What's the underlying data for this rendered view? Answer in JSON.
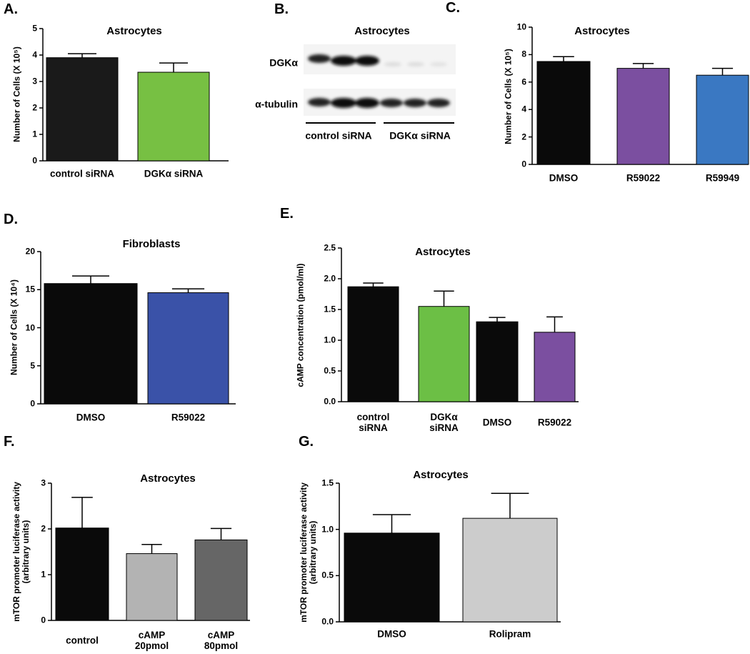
{
  "chart_data": [
    {
      "type": "bar",
      "panel": "A.",
      "title": "Astrocytes",
      "y_label": "Number of Cells (X 10⁵)",
      "categories": [
        "control siRNA",
        "DGKα siRNA"
      ],
      "values": [
        3.9,
        3.35
      ],
      "errors": [
        0.15,
        0.35
      ],
      "colors": [
        "#1a1a1a",
        "#77c043"
      ],
      "ylim": [
        0,
        5
      ],
      "yticks": [
        0,
        1,
        2,
        3,
        4,
        5
      ]
    },
    {
      "type": "bar",
      "panel": "C.",
      "title": "Astrocytes",
      "y_label": "Number of Cells (X 10⁵)",
      "categories": [
        "DMSO",
        "R59022",
        "R59949"
      ],
      "values": [
        7.5,
        7.0,
        6.5
      ],
      "errors": [
        0.35,
        0.35,
        0.5
      ],
      "colors": [
        "#0a0a0a",
        "#7b4fa0",
        "#3a78c2"
      ],
      "ylim": [
        0,
        10
      ],
      "yticks": [
        0,
        2,
        4,
        6,
        8,
        10
      ]
    },
    {
      "type": "bar",
      "panel": "D.",
      "title": "Fibroblasts",
      "y_label": "Number of Cells (X 10⁴)",
      "categories": [
        "DMSO",
        "R59022"
      ],
      "values": [
        15.8,
        14.6
      ],
      "errors": [
        1.0,
        0.5
      ],
      "colors": [
        "#0a0a0a",
        "#3a52a8"
      ],
      "ylim": [
        0,
        20
      ],
      "yticks": [
        0,
        5,
        10,
        15,
        20
      ]
    },
    {
      "type": "bar",
      "panel": "E.",
      "title": "Astrocytes",
      "y_label": "cAMP concentration (pmol/ml)",
      "categories": [
        "control siRNA",
        "DGKα siRNA",
        "DMSO",
        "R59022"
      ],
      "values": [
        1.87,
        1.55,
        1.3,
        1.13
      ],
      "errors": [
        0.06,
        0.25,
        0.07,
        0.25
      ],
      "colors": [
        "#0a0a0a",
        "#6cbf45",
        "#0a0a0a",
        "#7b4fa0"
      ],
      "ylim": [
        0,
        2.5
      ],
      "yticks": [
        {
          "value": 0,
          "label": "0.0"
        },
        0.5,
        {
          "value": 1,
          "label": "1.0"
        },
        1.5,
        {
          "value": 2,
          "label": "2.0"
        },
        2.5
      ]
    },
    {
      "type": "bar",
      "panel": "F.",
      "title": "Astrocytes",
      "y_label": "mTOR promoter luciferase activity (arbitrary units)",
      "categories": [
        "control",
        "cAMP 20pmol",
        "cAMP 80pmol"
      ],
      "values": [
        2.02,
        1.46,
        1.76
      ],
      "errors": [
        0.67,
        0.2,
        0.25
      ],
      "colors": [
        "#0a0a0a",
        "#b3b3b3",
        "#666666"
      ],
      "ylim": [
        0,
        3
      ],
      "yticks": [
        0,
        1,
        2,
        3
      ]
    },
    {
      "type": "bar",
      "panel": "G.",
      "title": "Astrocytes",
      "y_label": "mTOR promoter luciferase activity (arbitrary units)",
      "categories": [
        "DMSO",
        "Rolipram"
      ],
      "values": [
        0.96,
        1.12
      ],
      "errors": [
        0.2,
        0.27
      ],
      "colors": [
        "#0a0a0a",
        "#cccccc"
      ],
      "ylim": [
        0,
        1.5
      ],
      "yticks": [
        {
          "value": 0,
          "label": "0.0"
        },
        0.5,
        {
          "value": 1,
          "label": "1.0"
        },
        1.5
      ]
    }
  ],
  "blot": {
    "panel": "B.",
    "title": "Astrocytes",
    "rows": [
      "DGKα",
      "α-tubulin"
    ],
    "groups": [
      "control siRNA",
      "DGKα siRNA"
    ]
  }
}
